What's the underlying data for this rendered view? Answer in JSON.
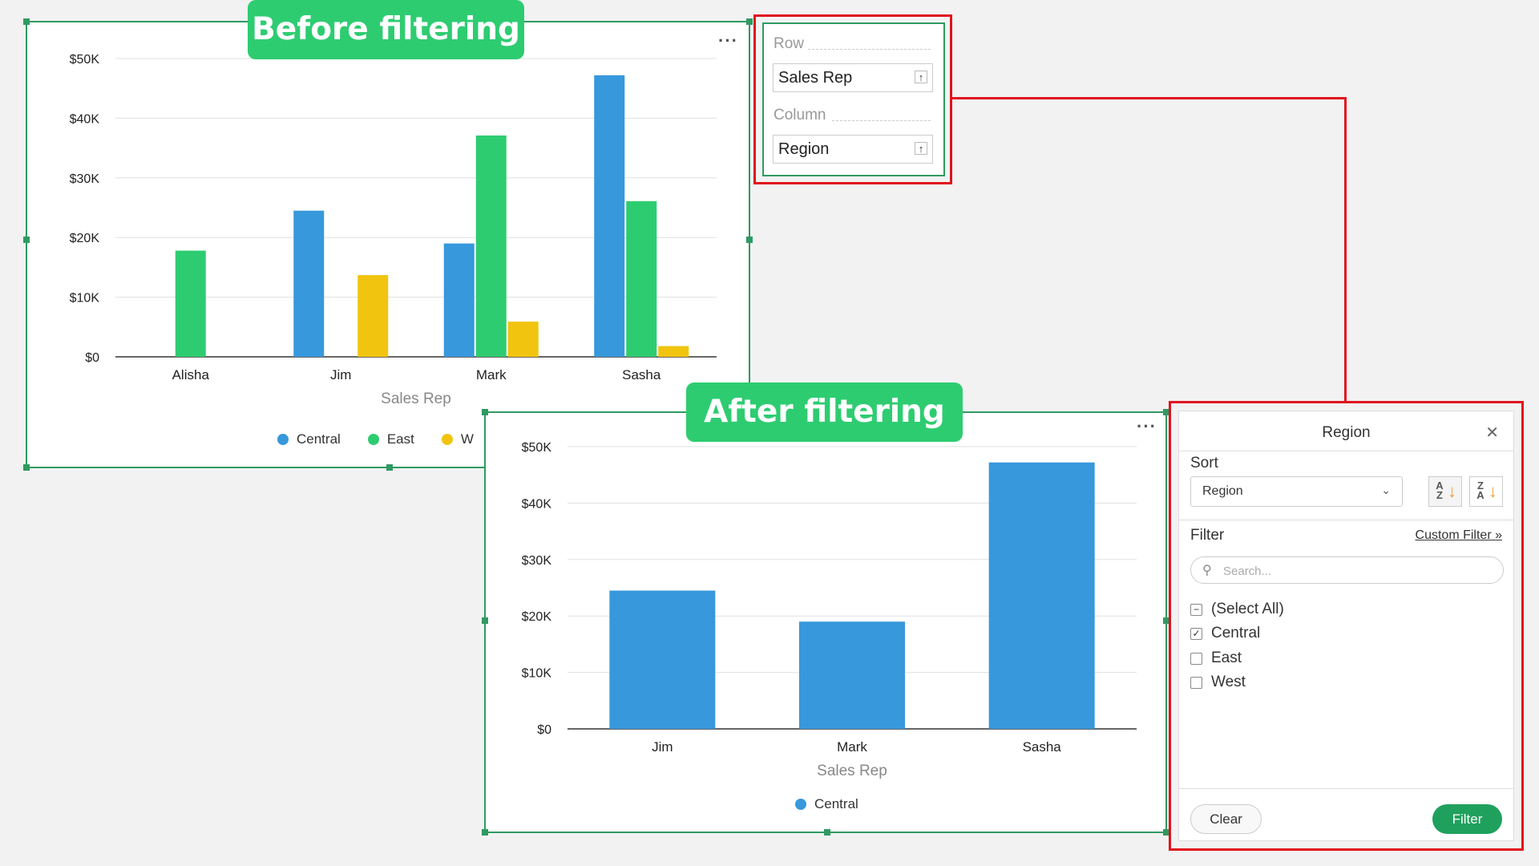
{
  "banners": {
    "before": "Before filtering",
    "after": "After filtering"
  },
  "colors": {
    "central": "#3798dc",
    "east": "#2ecc71",
    "west": "#f1c40f",
    "frame_green": "#2f9a62",
    "highlight_red": "#e0131d"
  },
  "chart_data": [
    {
      "type": "bar",
      "categories": [
        "Alisha",
        "Jim",
        "Mark",
        "Sasha"
      ],
      "series": [
        {
          "name": "Central",
          "values": [
            0,
            24500,
            19000,
            47200
          ]
        },
        {
          "name": "East",
          "values": [
            17800,
            0,
            37100,
            26100
          ]
        },
        {
          "name": "West",
          "values": [
            0,
            13700,
            5900,
            1800
          ]
        }
      ],
      "xlabel": "Sales Rep",
      "ylabel": "",
      "ylim": [
        0,
        50000
      ],
      "yticks": [
        "$0",
        "$10K",
        "$20K",
        "$30K",
        "$40K",
        "$50K"
      ],
      "legend": [
        "Central",
        "East",
        "W"
      ],
      "legend_position": "bottom"
    },
    {
      "type": "bar",
      "categories": [
        "Jim",
        "Mark",
        "Sasha"
      ],
      "series": [
        {
          "name": "Central",
          "values": [
            24500,
            19000,
            47200
          ]
        }
      ],
      "xlabel": "Sales Rep",
      "ylabel": "",
      "ylim": [
        0,
        50000
      ],
      "yticks": [
        "$0",
        "$10K",
        "$20K",
        "$30K",
        "$40K",
        "$50K"
      ],
      "legend": [
        "Central"
      ],
      "legend_position": "bottom"
    }
  ],
  "field_well": {
    "row_label": "Row",
    "row_value": "Sales Rep",
    "column_label": "Column",
    "column_value": "Region",
    "sort_icon": "sort-toggle-icon"
  },
  "panel": {
    "title": "Region",
    "sort_label": "Sort",
    "sort_selected": "Region",
    "filter_label": "Filter",
    "custom_filter": "Custom Filter",
    "search_placeholder": "Search...",
    "options": [
      {
        "label": "(Select All)",
        "state": "partial"
      },
      {
        "label": "Central",
        "state": "checked"
      },
      {
        "label": "East",
        "state": "unchecked"
      },
      {
        "label": "West",
        "state": "unchecked"
      }
    ],
    "clear_button": "Clear",
    "filter_button": "Filter"
  }
}
